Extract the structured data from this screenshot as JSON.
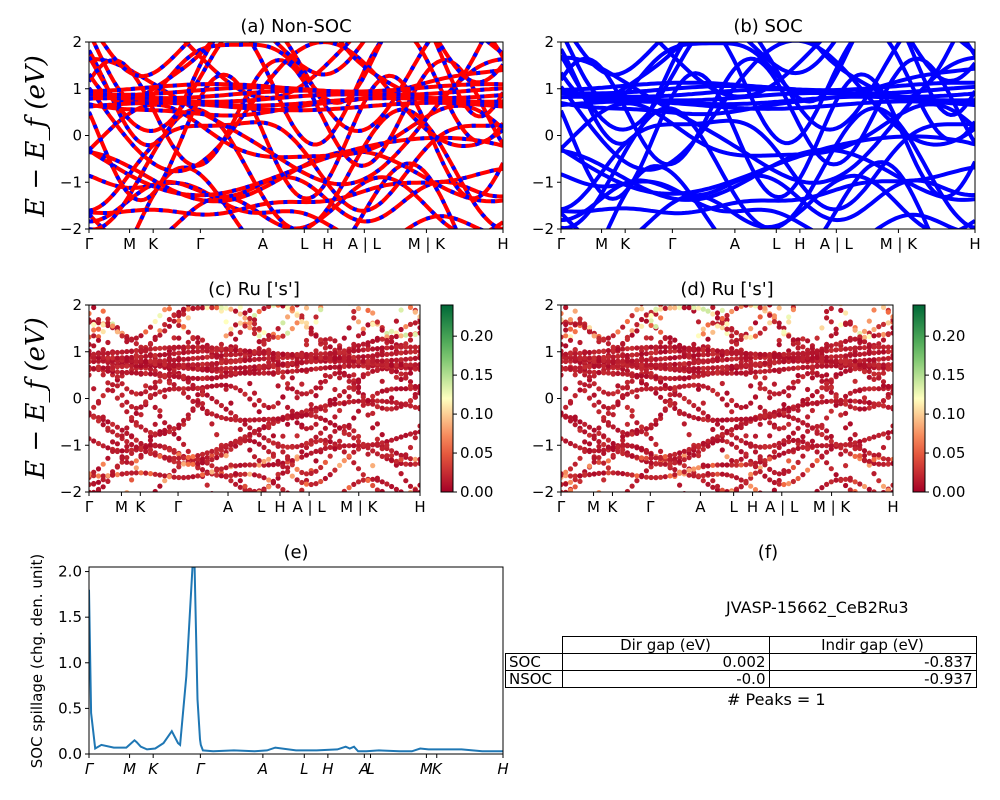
{
  "chart_data": [
    {
      "panel": "a",
      "type": "line",
      "title": "(a) Non-SOC",
      "ylabel": "E − E_f (eV)",
      "ylim": [
        -2,
        2
      ],
      "yticks": [
        "−2",
        "−1",
        "0",
        "1",
        "2"
      ],
      "kpoint_labels": [
        "Γ",
        "M",
        "K",
        "Γ",
        "A",
        "L",
        "H",
        "A | L",
        "M | K",
        "H"
      ],
      "series_colors": [
        "#ff0000",
        "#0000ff"
      ],
      "style": "red/blue dashed band lines"
    },
    {
      "panel": "b",
      "type": "line",
      "title": "(b) SOC",
      "ylim": [
        -2,
        2
      ],
      "yticks": [
        "−2",
        "−1",
        "0",
        "1",
        "2"
      ],
      "kpoint_labels": [
        "Γ",
        "M",
        "K",
        "Γ",
        "A",
        "L",
        "H",
        "A | L",
        "M | K",
        "H"
      ],
      "series_colors": [
        "#0000ff"
      ]
    },
    {
      "panel": "c",
      "type": "scatter",
      "title": "(c)  Ru ['s']",
      "ylabel": "E − E_f (eV)",
      "ylim": [
        -2,
        2
      ],
      "yticks": [
        "−2",
        "−1",
        "0",
        "1",
        "2"
      ],
      "kpoint_labels": [
        "Γ",
        "M",
        "K",
        "Γ",
        "A",
        "L",
        "H",
        "A | L",
        "M | K",
        "H"
      ],
      "colorbar": {
        "colormap": "RdYlGn",
        "min": 0.0,
        "max": 0.24,
        "ticks": [
          "0.00",
          "0.05",
          "0.10",
          "0.15",
          "0.20"
        ]
      }
    },
    {
      "panel": "d",
      "type": "scatter",
      "title": "(d) Ru ['s']",
      "ylim": [
        -2,
        2
      ],
      "yticks": [
        "−2",
        "−1",
        "0",
        "1",
        "2"
      ],
      "kpoint_labels": [
        "Γ",
        "M",
        "K",
        "Γ",
        "A",
        "L",
        "H",
        "A | L",
        "M | K",
        "H"
      ],
      "colorbar": {
        "colormap": "RdYlGn",
        "min": 0.0,
        "max": 0.24,
        "ticks": [
          "0.00",
          "0.05",
          "0.10",
          "0.15",
          "0.20"
        ]
      }
    },
    {
      "panel": "e",
      "type": "line",
      "title": "(e)",
      "ylabel": "SOC spillage (chg. den. unit)",
      "ylim": [
        0,
        2.05
      ],
      "yticks": [
        "0.0",
        "0.5",
        "1.0",
        "1.5",
        "2.0"
      ],
      "xlim": [
        0,
        1
      ],
      "kpoint_labels": [
        "Γ",
        "M",
        "K",
        "Γ",
        "A",
        "L",
        "H",
        "A",
        "L",
        "M",
        "K",
        "H"
      ],
      "color": "#1f77b4",
      "x": [
        0,
        0.005,
        0.015,
        0.03,
        0.06,
        0.09,
        0.11,
        0.115,
        0.125,
        0.14,
        0.16,
        0.18,
        0.2,
        0.215,
        0.22,
        0.235,
        0.25,
        0.255,
        0.262,
        0.268,
        0.27,
        0.275,
        0.3,
        0.35,
        0.4,
        0.43,
        0.45,
        0.5,
        0.55,
        0.6,
        0.62,
        0.63,
        0.64,
        0.65,
        0.67,
        0.7,
        0.75,
        0.78,
        0.8,
        0.82,
        0.85,
        0.9,
        0.95,
        1.0
      ],
      "y": [
        1.8,
        0.45,
        0.06,
        0.1,
        0.07,
        0.07,
        0.15,
        0.13,
        0.08,
        0.05,
        0.06,
        0.12,
        0.25,
        0.12,
        0.1,
        0.85,
        2.05,
        2.05,
        0.6,
        0.16,
        0.1,
        0.04,
        0.03,
        0.04,
        0.03,
        0.04,
        0.07,
        0.04,
        0.04,
        0.05,
        0.08,
        0.06,
        0.08,
        0.03,
        0.03,
        0.04,
        0.03,
        0.03,
        0.06,
        0.05,
        0.05,
        0.05,
        0.03,
        0.03
      ]
    },
    {
      "panel": "f",
      "type": "table",
      "title": "(f)",
      "material": "JVASP-15662_CeB2Ru3",
      "columns": [
        "Dir gap (eV)",
        "Indir gap (eV)"
      ],
      "rows": [
        {
          "label": "SOC",
          "dir_gap": "0.002",
          "indir_gap": "-0.837"
        },
        {
          "label": "NSOC",
          "dir_gap": "-0.0",
          "indir_gap": "-0.937"
        }
      ],
      "peaks_text": "# Peaks = 1"
    }
  ]
}
